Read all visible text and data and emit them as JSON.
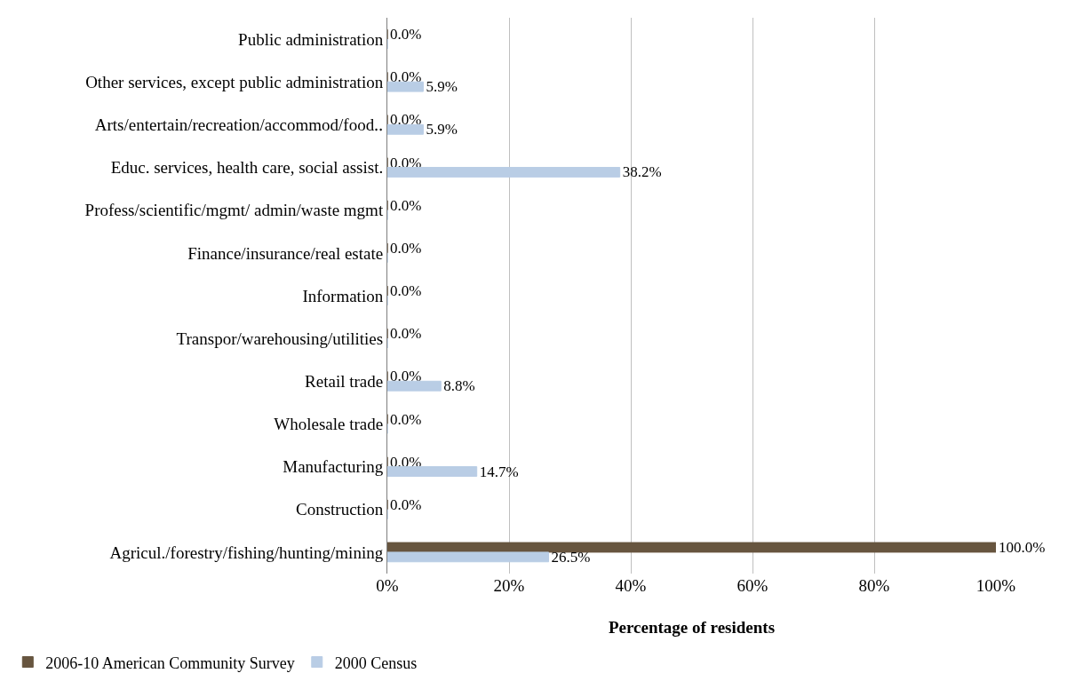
{
  "chart_data": {
    "type": "bar",
    "orientation": "horizontal",
    "xlabel": "Percentage of residents",
    "categories": [
      "Public administration",
      "Other services, except public administration",
      "Arts/entertain/recreation/accommod/food‥",
      "Educ. services, health care, social assist.",
      "Profess/scientific/mgmt/ admin/waste mgmt",
      "Finance/insurance/real estate",
      "Information",
      "Transpor/warehousing/utilities",
      "Retail trade",
      "Wholesale trade",
      "Manufacturing",
      "Construction",
      "Agricul./forestry/fishing/hunting/mining"
    ],
    "series": [
      {
        "name": "2006-10 American Community Survey",
        "color": "#67553f",
        "values": [
          0,
          0,
          0,
          0,
          0,
          0,
          0,
          0,
          0,
          0,
          0,
          0,
          100
        ],
        "value_labels": [
          "0.0%",
          "0.0%",
          "0.0%",
          "0.0%",
          "0.0%",
          "0.0%",
          "0.0%",
          "0.0%",
          "0.0%",
          "0.0%",
          "0.0%",
          "0.0%",
          "100.0%"
        ]
      },
      {
        "name": "2000 Census",
        "color": "#b9cde5",
        "values": [
          0,
          5.9,
          5.9,
          38.2,
          0,
          0,
          0,
          0,
          8.8,
          0,
          14.7,
          0,
          26.5
        ],
        "value_labels": [
          null,
          "5.9%",
          "5.9%",
          "38.2%",
          null,
          null,
          null,
          null,
          "8.8%",
          null,
          "14.7%",
          null,
          "26.5%"
        ]
      }
    ],
    "xlim": [
      0,
      100
    ],
    "xticks": [
      {
        "value": 0,
        "label": "0%"
      },
      {
        "value": 20,
        "label": "20%"
      },
      {
        "value": 40,
        "label": "40%"
      },
      {
        "value": 60,
        "label": "60%"
      },
      {
        "value": 80,
        "label": "80%"
      },
      {
        "value": 100,
        "label": "100%"
      }
    ],
    "grid": "x",
    "legend": "bottom left"
  }
}
